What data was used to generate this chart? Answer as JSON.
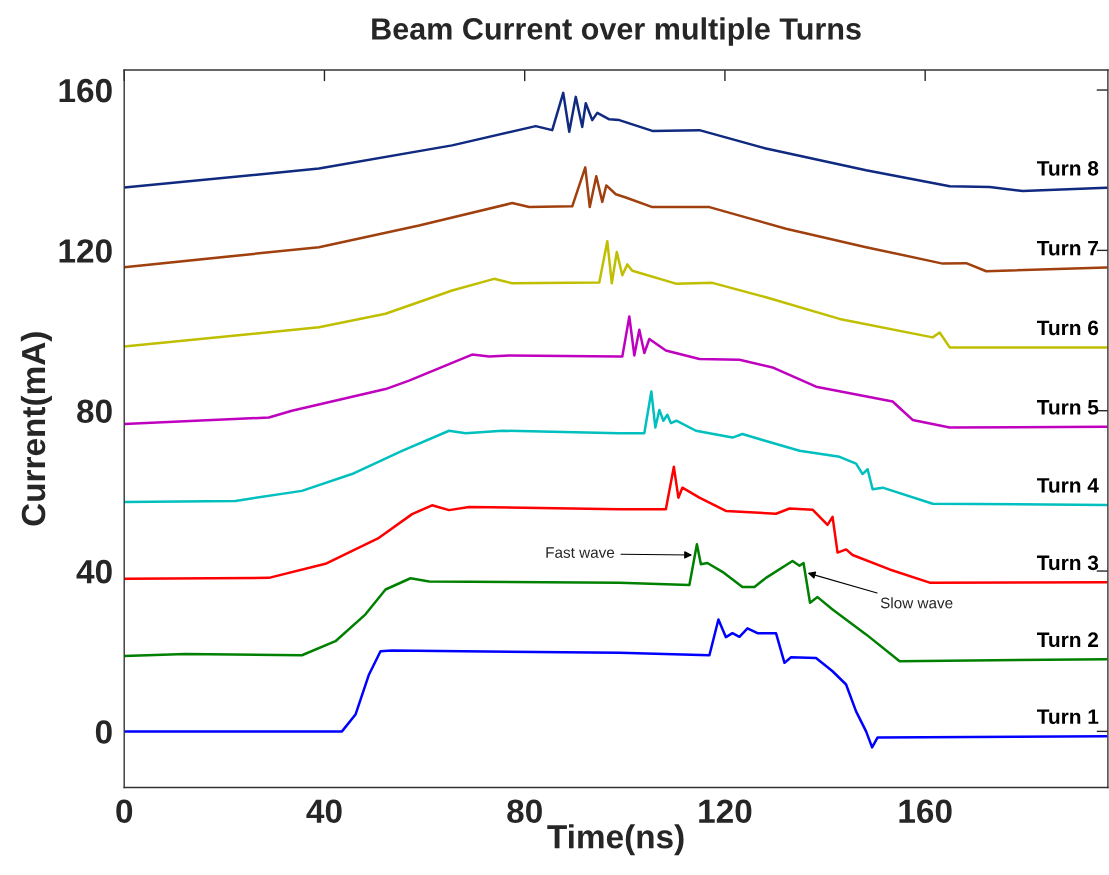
{
  "chart_data": {
    "type": "line",
    "title": "Beam Current over multiple Turns",
    "xlabel": "Time(ns)",
    "ylabel": "Current(mA)",
    "xlim": [
      0,
      196.5
    ],
    "ylim": [
      -14,
      165
    ],
    "xticks": [
      0,
      40,
      80,
      120,
      160
    ],
    "yticks": [
      0,
      40,
      80,
      120,
      160
    ],
    "grid": false,
    "legend": false,
    "marker": "none",
    "line_style": "solid",
    "series": [
      {
        "name": "Turn 1",
        "color": "#0000ff",
        "x": [
          0,
          43.5,
          46.2,
          48.9,
          51.2,
          53.5,
          98.9,
          116.9,
          118.7,
          120.2,
          121.5,
          122.9,
          124.5,
          126.5,
          130.2,
          131.9,
          133.2,
          138.2,
          141.5,
          144.2,
          146.2,
          148.2,
          149.4,
          150.5,
          196.2
        ],
        "values": [
          0,
          0,
          4.2,
          14.2,
          20,
          20.2,
          19.6,
          19,
          27.9,
          23.5,
          24.5,
          23.6,
          25.7,
          24.5,
          24.5,
          17.1,
          18.5,
          18.3,
          15,
          11.7,
          5,
          0,
          -4,
          -1.5,
          -1.2
        ]
      },
      {
        "name": "Turn 2",
        "color": "#008000",
        "x": [
          0,
          12.2,
          35.5,
          42.2,
          48.2,
          52.2,
          57.2,
          60.9,
          98.9,
          112.9,
          114.4,
          115.2,
          116.5,
          119.5,
          123.5,
          125.9,
          128.2,
          133.5,
          134.9,
          135.7,
          137,
          138.5,
          141.5,
          148.2,
          154.9,
          196.2
        ],
        "values": [
          18.8,
          19.3,
          19,
          22.5,
          29.2,
          35.4,
          38.2,
          37.4,
          37.1,
          36.5,
          46.7,
          41.7,
          42,
          39.8,
          36,
          36,
          38.3,
          42.5,
          41.3,
          42,
          32.1,
          33.5,
          30.4,
          24.2,
          17.5,
          18
        ]
      },
      {
        "name": "Turn 3",
        "color": "#ff0000",
        "x": [
          0,
          28.9,
          40.2,
          50.9,
          57.5,
          61.5,
          64.9,
          68.9,
          98.9,
          108.2,
          109.8,
          110.7,
          111.5,
          114.9,
          120.2,
          130.2,
          132.9,
          137.5,
          140.5,
          141.5,
          142.5,
          144.2,
          145.5,
          152.9,
          160.9,
          196.2
        ],
        "values": [
          38.1,
          38.3,
          41.8,
          48.3,
          54.2,
          56.4,
          55.2,
          56,
          55.4,
          55.4,
          66,
          58.3,
          60.8,
          58.3,
          55,
          54.3,
          55.6,
          55.3,
          51.5,
          53.5,
          44.6,
          45.4,
          44,
          40.4,
          37.1,
          37.2
        ]
      },
      {
        "name": "Turn 4",
        "color": "#00bfbf",
        "x": [
          0,
          22.2,
          35.5,
          45.5,
          55.5,
          64.9,
          68.2,
          75.5,
          98.9,
          103.9,
          105.3,
          106.1,
          106.9,
          107.7,
          108.5,
          109.2,
          110.3,
          114.2,
          121.5,
          123.5,
          127.5,
          134.9,
          142.9,
          146.2,
          147.5,
          148.5,
          149.5,
          151.5,
          161.5,
          196.2
        ],
        "values": [
          57.2,
          57.5,
          60,
          64.2,
          70,
          75,
          74.4,
          75,
          74.4,
          74.4,
          84.8,
          75.8,
          80.2,
          77.5,
          79,
          76.9,
          77.5,
          75,
          73.3,
          74.2,
          72.7,
          70,
          68.5,
          66.8,
          64.2,
          65.4,
          60.4,
          60.8,
          56.8,
          56.5
        ]
      },
      {
        "name": "Turn 5",
        "color": "#bf00bf",
        "x": [
          0,
          28.9,
          33.5,
          52.2,
          56.9,
          69.5,
          72.9,
          76.9,
          98.9,
          99.5,
          100.9,
          101.9,
          102.9,
          103.9,
          104.9,
          108.2,
          114.9,
          122.9,
          129.5,
          138.2,
          153.5,
          155.5,
          157.5,
          164.9,
          196.2
        ],
        "values": [
          76.7,
          78.3,
          80,
          85.4,
          87.5,
          94,
          93.5,
          93.8,
          93.5,
          93.5,
          103.5,
          93.8,
          100.2,
          94.4,
          97.9,
          95,
          92.9,
          92.7,
          90.8,
          86,
          82.3,
          80,
          77.7,
          75.8,
          76
        ]
      },
      {
        "name": "Turn 6",
        "color": "#bfbf00",
        "x": [
          0,
          38.9,
          52.2,
          65.5,
          73.9,
          77.5,
          94.9,
          96.5,
          97.4,
          98.4,
          99.5,
          100.5,
          101.5,
          110.2,
          117.5,
          128.2,
          142.9,
          161.5,
          162.9,
          164.9,
          196.2
        ],
        "values": [
          96,
          100.8,
          104.2,
          110,
          112.9,
          111.8,
          112,
          122.3,
          111.8,
          119.6,
          113.8,
          116.5,
          114.9,
          111.7,
          111.9,
          108.3,
          102.9,
          98.3,
          99.5,
          95.8,
          95.8
        ]
      },
      {
        "name": "Turn 7",
        "color": "#a0400f",
        "x": [
          0,
          38.9,
          58.9,
          77.5,
          80.9,
          89.5,
          92.1,
          93,
          94.3,
          95.5,
          96.3,
          98.2,
          100.2,
          105.5,
          116.9,
          132.2,
          148.2,
          163.5,
          168.2,
          172.2,
          196.2
        ],
        "values": [
          115.8,
          120.8,
          126.2,
          131.8,
          130.8,
          131,
          140.7,
          130.8,
          138.5,
          132.1,
          136.2,
          134,
          133.2,
          130.8,
          130.8,
          125.4,
          120.8,
          116.7,
          116.8,
          114.8,
          115.7
        ]
      },
      {
        "name": "Turn 8",
        "color": "#0f2a80",
        "x": [
          0,
          38.9,
          65.5,
          82.2,
          85.5,
          87.7,
          88.9,
          90.2,
          91.5,
          92.2,
          93.5,
          94.5,
          96.9,
          98.9,
          105.5,
          114.9,
          128.2,
          148.2,
          164.9,
          172.9,
          179.5,
          196.2
        ],
        "values": [
          135.7,
          140.4,
          146.2,
          151,
          150,
          159.3,
          149.6,
          158.3,
          150.8,
          156.7,
          152.5,
          154.3,
          152.7,
          152.5,
          149.8,
          150,
          145.4,
          140,
          136,
          135.8,
          134.8,
          135.6
        ]
      }
    ],
    "annotations": [
      {
        "text": "Fast wave",
        "x": 114,
        "y": 44
      },
      {
        "text": "Slow wave",
        "x": 136,
        "y": 39.7
      }
    ]
  }
}
